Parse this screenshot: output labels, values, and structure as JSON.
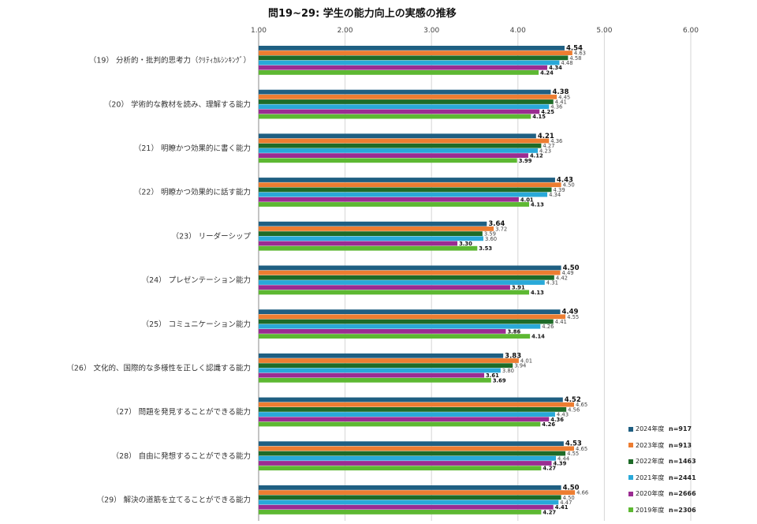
{
  "chart_data": {
    "type": "bar",
    "orientation": "horizontal",
    "title": "問19~29: 学生の能力向上の実感の推移",
    "xlim": [
      1.0,
      6.0
    ],
    "xticks": [
      "1.00",
      "2.00",
      "3.00",
      "4.00",
      "5.00",
      "6.00"
    ],
    "grid": true,
    "legend_position": "bottom-right",
    "categories": [
      "（19） 分析的・批判的思考力（ｸﾘﾃｨｶﾙｼﾝｷﾝｸﾞ）",
      "（20） 学術的な教材を読み、理解する能力",
      "（21） 明瞭かつ効果的に書く能力",
      "（22） 明瞭かつ効果的に話す能力",
      "（23） リーダーシップ",
      "（24） プレゼンテーション能力",
      "（25） コミュニケーション能力",
      "（26） 文化的、国際的な多様性を正しく認識する能力",
      "（27） 問題を発見することができる能力",
      "（28） 自由に発想することができる能力",
      "（29） 解決の道筋を立てることができる能力"
    ],
    "series": [
      {
        "name": "2024年度",
        "n": "n=917",
        "color": "#1f5f82",
        "values": [
          4.54,
          4.38,
          4.21,
          4.43,
          3.64,
          4.5,
          4.49,
          3.83,
          4.52,
          4.53,
          4.5
        ],
        "labels": [
          "4.54",
          "4.38",
          "4.21",
          "4.43",
          "3.64",
          "4.50",
          "4.49",
          "3.83",
          "4.52",
          "4.53",
          "4.50"
        ]
      },
      {
        "name": "2023年度",
        "n": "n=913",
        "color": "#ed7d31",
        "values": [
          4.63,
          4.45,
          4.36,
          4.5,
          3.72,
          4.49,
          4.55,
          4.01,
          4.65,
          4.65,
          4.66
        ],
        "labels": [
          "4.63",
          "4.45",
          "4.36",
          "4.50",
          "3.72",
          "4.49",
          "4.55",
          "4.01",
          "4.65",
          "4.65",
          "4.66"
        ]
      },
      {
        "name": "2022年度",
        "n": "n=1463",
        "color": "#1e6b28",
        "values": [
          4.58,
          4.41,
          4.27,
          4.39,
          3.59,
          4.42,
          4.41,
          3.94,
          4.56,
          4.55,
          4.5
        ],
        "labels": [
          "4.58",
          "4.41",
          "4.27",
          "4.39",
          "3.59",
          "4.42",
          "4.41",
          "3.94",
          "4.56",
          "4.55",
          "4.50"
        ]
      },
      {
        "name": "2021年度",
        "n": "n=2441",
        "color": "#29a9d9",
        "values": [
          4.48,
          4.36,
          4.23,
          4.34,
          3.6,
          4.31,
          4.26,
          3.8,
          4.43,
          4.44,
          4.47
        ],
        "labels": [
          "4.48",
          "4.36",
          "4.23",
          "4.34",
          "3.60",
          "4.31",
          "4.26",
          "3.80",
          "4.43",
          "4.44",
          "4.47"
        ]
      },
      {
        "name": "2020年度",
        "n": "n=2666",
        "color": "#9b2c92",
        "values": [
          4.34,
          4.25,
          4.12,
          4.01,
          3.3,
          3.91,
          3.86,
          3.61,
          4.36,
          4.39,
          4.41
        ],
        "labels": [
          "4.34",
          "4.25",
          "4.12",
          "4.01",
          "3.30",
          "3.91",
          "3.86",
          "3.61",
          "4.36",
          "4.39",
          "4.41"
        ]
      },
      {
        "name": "2019年度",
        "n": "n=2306",
        "color": "#5db832",
        "values": [
          4.24,
          4.15,
          3.99,
          4.13,
          3.53,
          4.13,
          4.14,
          3.69,
          4.26,
          4.27,
          4.27
        ],
        "labels": [
          "4.24",
          "4.15",
          "3.99",
          "4.13",
          "3.53",
          "4.13",
          "4.14",
          "3.69",
          "4.26",
          "4.27",
          "4.27"
        ]
      }
    ]
  }
}
